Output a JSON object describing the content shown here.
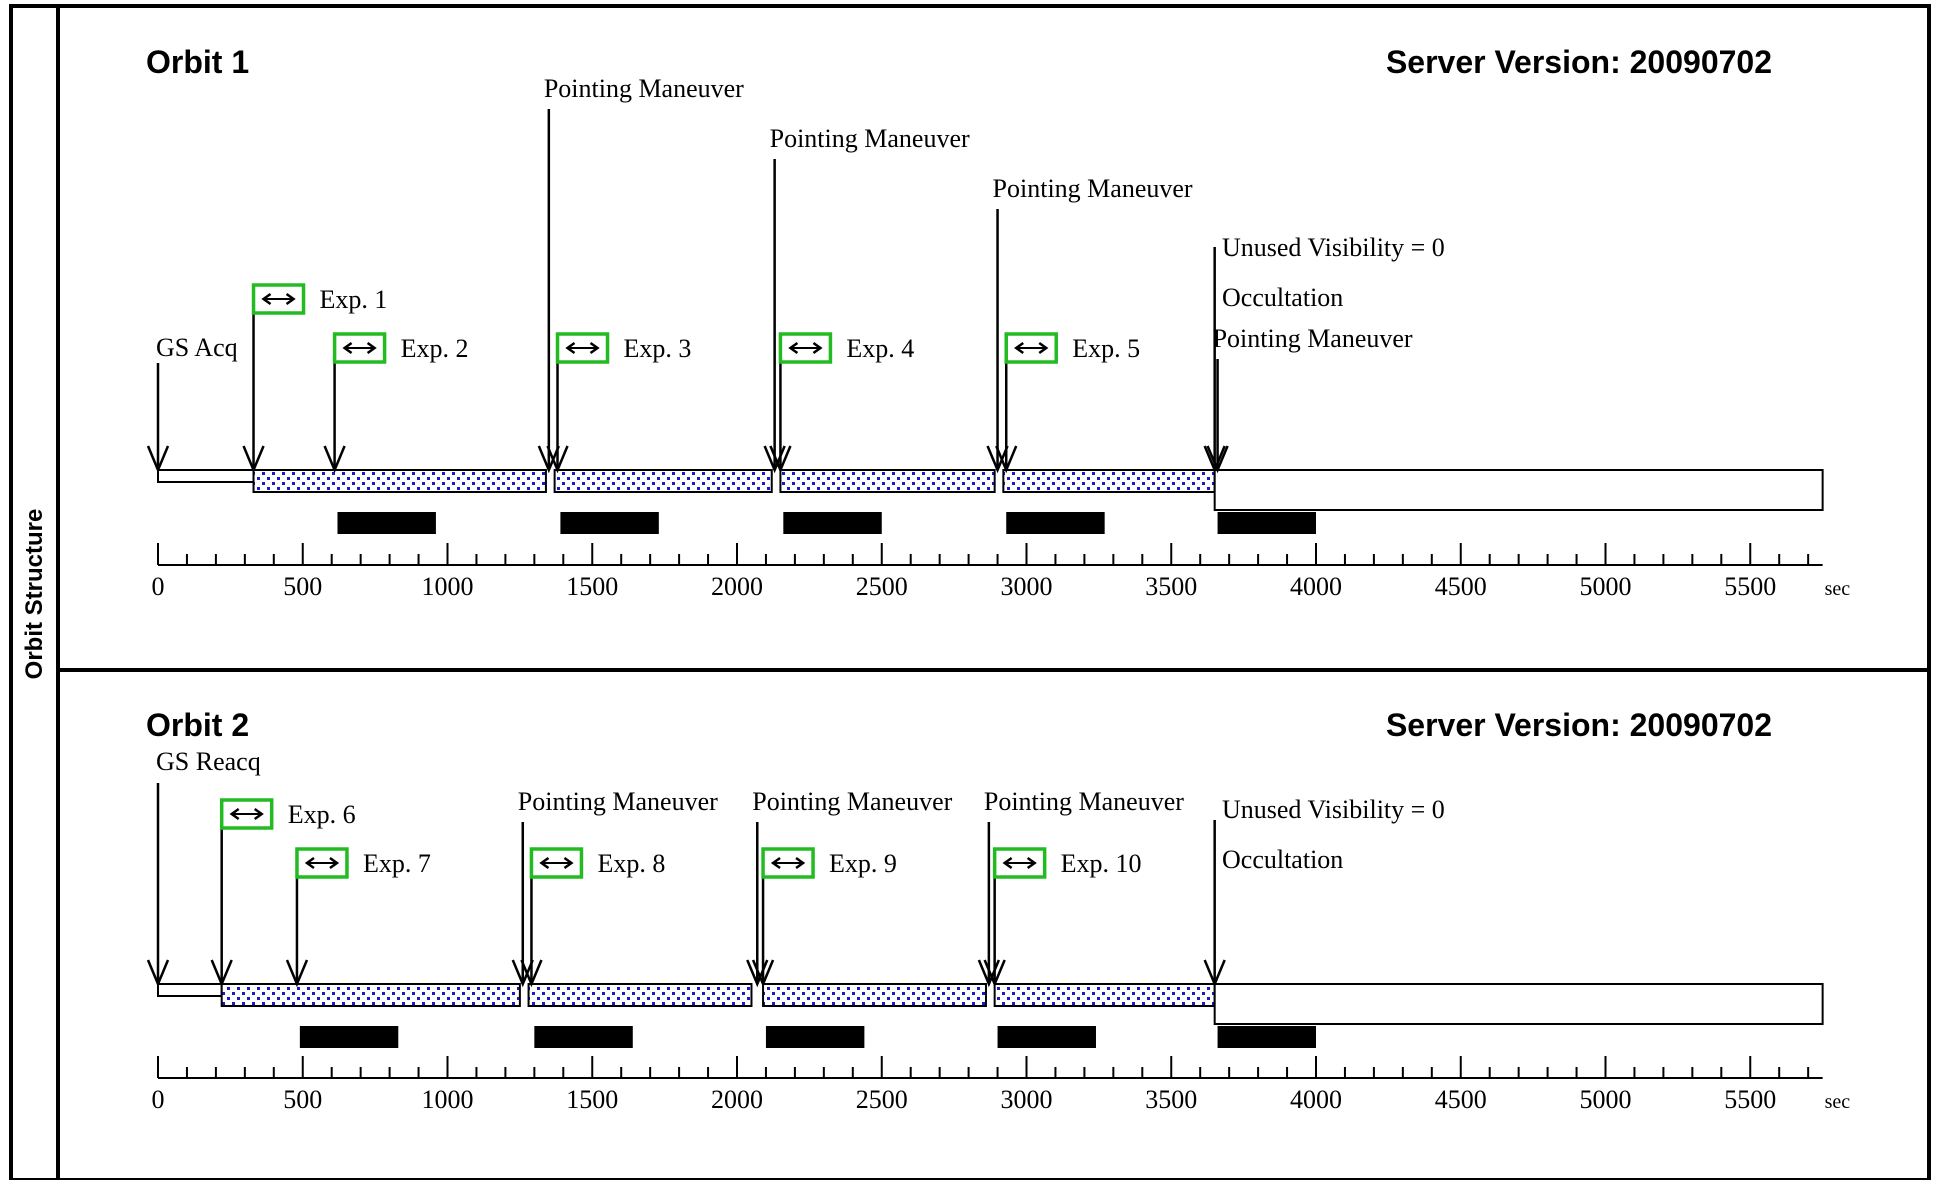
{
  "side_label": "Orbit Structure",
  "axis": {
    "ticks": [
      0,
      500,
      1000,
      1500,
      2000,
      2500,
      3000,
      3500,
      4000,
      4500,
      5000,
      5500
    ],
    "unit": "sec",
    "max": 5750
  },
  "orbits": [
    {
      "title": "Orbit 1",
      "server_version": "Server Version: 20090702",
      "acq_label": "GS Acq",
      "unused_visibility": "Unused Visibility = 0",
      "occultation": "Occultation",
      "start": 330,
      "visibility_end": 3650,
      "orbit_end": 5750,
      "exposures": [
        {
          "label": "Exp. 1",
          "start": 330,
          "end": 1340,
          "bar_start": 620,
          "bar_end": 960
        },
        {
          "label": "Exp. 2",
          "start": 610,
          "end": 1340,
          "bar_start": 620,
          "bar_end": 960
        },
        {
          "label": "Exp. 3",
          "start": 1380,
          "end": 2120,
          "bar_start": 1390,
          "bar_end": 1730
        },
        {
          "label": "Exp. 4",
          "start": 2150,
          "end": 2890,
          "bar_start": 2160,
          "bar_end": 2500
        },
        {
          "label": "Exp. 5",
          "start": 2930,
          "end": 3650,
          "bar_start": 2930,
          "bar_end": 3270
        }
      ],
      "maneuvers": [
        {
          "label": "Pointing Maneuver",
          "t": 1350
        },
        {
          "label": "Pointing Maneuver",
          "t": 2130
        },
        {
          "label": "Pointing Maneuver",
          "t": 2900
        },
        {
          "label": "Pointing Maneuver",
          "t": 3660
        }
      ],
      "occultation_bar": {
        "start": 3660,
        "end": 4000
      }
    },
    {
      "title": "Orbit 2",
      "server_version": "Server Version: 20090702",
      "acq_label": "GS Reacq",
      "unused_visibility": "Unused Visibility = 0",
      "occultation": "Occultation",
      "start": 220,
      "visibility_end": 3650,
      "orbit_end": 5750,
      "exposures": [
        {
          "label": "Exp. 6",
          "start": 220,
          "end": 1250,
          "bar_start": 490,
          "bar_end": 830
        },
        {
          "label": "Exp. 7",
          "start": 480,
          "end": 1250,
          "bar_start": 490,
          "bar_end": 830
        },
        {
          "label": "Exp. 8",
          "start": 1290,
          "end": 2050,
          "bar_start": 1300,
          "bar_end": 1640
        },
        {
          "label": "Exp. 9",
          "start": 2090,
          "end": 2860,
          "bar_start": 2100,
          "bar_end": 2440
        },
        {
          "label": "Exp. 10",
          "start": 2890,
          "end": 3650,
          "bar_start": 2900,
          "bar_end": 3240
        }
      ],
      "maneuvers": [
        {
          "label": "Pointing Maneuver",
          "t": 1260
        },
        {
          "label": "Pointing Maneuver",
          "t": 2070
        },
        {
          "label": "Pointing Maneuver",
          "t": 2870
        }
      ],
      "occultation_bar": {
        "start": 3660,
        "end": 4000
      }
    }
  ]
}
